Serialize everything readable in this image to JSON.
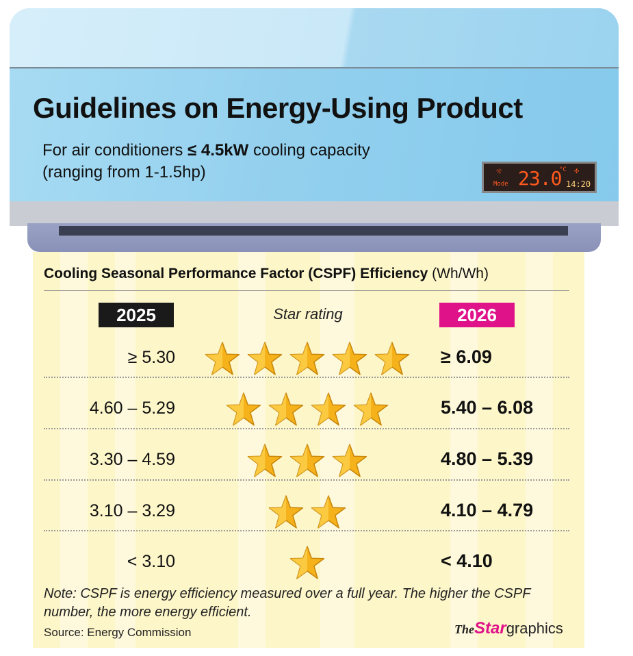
{
  "header": {
    "title": "Guidelines on Energy-Using Product",
    "subtitle_pre": "For air conditioners ",
    "subtitle_bold": "≤ 4.5kW",
    "subtitle_post": " cooling capacity",
    "subtitle_line2": "(ranging from 1-1.5hp)"
  },
  "display": {
    "mode_label": "Mode",
    "temperature": "23.0",
    "unit": "°C",
    "time": "14:20",
    "sun_icon": "☼",
    "fan_icon": "✣"
  },
  "table": {
    "heading_bold": "Cooling Seasonal Performance Factor (CSPF) Efficiency",
    "heading_unit": " (Wh/Wh)",
    "col_2025": "2025",
    "col_star": "Star rating",
    "col_2026": "2026",
    "colors": {
      "badge_2025": "#1a1a1a",
      "badge_2026": "#e0128a",
      "star": "#f5b21b"
    },
    "rows": [
      {
        "range_2025": "≥ 5.30",
        "stars": 5,
        "range_2026": "≥ 6.09"
      },
      {
        "range_2025": "4.60 – 5.29",
        "stars": 4,
        "range_2026": "5.40 – 6.08"
      },
      {
        "range_2025": "3.30 – 4.59",
        "stars": 3,
        "range_2026": "4.80 – 5.39"
      },
      {
        "range_2025": "3.10 – 3.29",
        "stars": 2,
        "range_2026": "4.10 – 4.79"
      },
      {
        "range_2025": "< 3.10",
        "stars": 1,
        "range_2026": "< 4.10"
      }
    ]
  },
  "footer": {
    "note": "Note: CSPF is energy efficiency measured over a full year. The higher the CSPF number, the more energy efficient.",
    "source": "Source: Energy Commission",
    "logo_the": "The",
    "logo_star": "Star",
    "logo_graphics": "graphics"
  }
}
